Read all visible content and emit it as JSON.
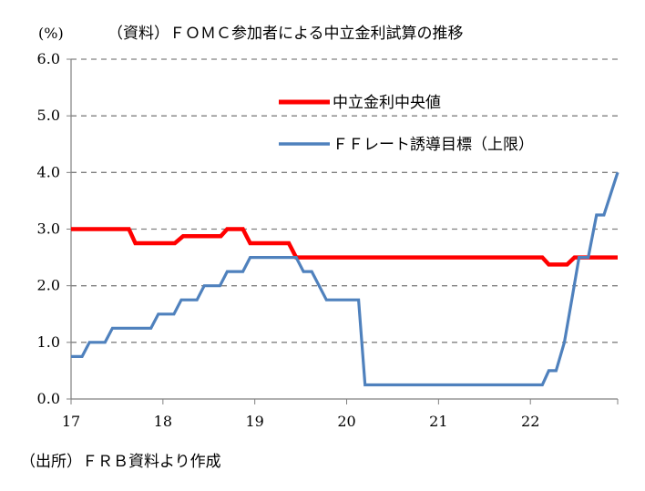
{
  "chart_data": {
    "type": "line",
    "title": "（資料）ＦＯＭＣ参加者による中立金利試算の推移",
    "ylabel": "(%)",
    "source": "（出所）ＦＲＢ資料より作成",
    "ylim": [
      0,
      6
    ],
    "xlim": [
      2017,
      2022.95
    ],
    "y_ticks": [
      "0.0",
      "1.0",
      "2.0",
      "3.0",
      "4.0",
      "5.0",
      "6.0"
    ],
    "x_ticks": [
      "17",
      "18",
      "19",
      "20",
      "21",
      "22"
    ],
    "grid": "horizontal dashed",
    "legend_position": "upper-right",
    "series": [
      {
        "name": "中立金利中央値",
        "color": "#ff0000",
        "points": [
          [
            2017.0,
            3.0
          ],
          [
            2017.63,
            3.0
          ],
          [
            2017.7,
            2.75
          ],
          [
            2018.13,
            2.75
          ],
          [
            2018.22,
            2.875
          ],
          [
            2018.63,
            2.875
          ],
          [
            2018.7,
            3.0
          ],
          [
            2018.87,
            3.0
          ],
          [
            2018.95,
            2.75
          ],
          [
            2019.37,
            2.75
          ],
          [
            2019.45,
            2.5
          ],
          [
            2022.13,
            2.5
          ],
          [
            2022.2,
            2.375
          ],
          [
            2022.4,
            2.375
          ],
          [
            2022.48,
            2.5
          ],
          [
            2022.95,
            2.5
          ]
        ]
      },
      {
        "name": "ＦＦレート誘導目標（上限）",
        "color": "#4f81bd",
        "points": [
          [
            2017.0,
            0.75
          ],
          [
            2017.12,
            0.75
          ],
          [
            2017.2,
            1.0
          ],
          [
            2017.37,
            1.0
          ],
          [
            2017.45,
            1.25
          ],
          [
            2017.87,
            1.25
          ],
          [
            2017.95,
            1.5
          ],
          [
            2018.12,
            1.5
          ],
          [
            2018.2,
            1.75
          ],
          [
            2018.37,
            1.75
          ],
          [
            2018.45,
            2.0
          ],
          [
            2018.62,
            2.0
          ],
          [
            2018.7,
            2.25
          ],
          [
            2018.87,
            2.25
          ],
          [
            2018.95,
            2.5
          ],
          [
            2019.45,
            2.5
          ],
          [
            2019.53,
            2.25
          ],
          [
            2019.62,
            2.25
          ],
          [
            2019.78,
            1.75
          ],
          [
            2020.13,
            1.75
          ],
          [
            2020.2,
            0.25
          ],
          [
            2022.13,
            0.25
          ],
          [
            2022.2,
            0.5
          ],
          [
            2022.28,
            0.5
          ],
          [
            2022.37,
            1.0
          ],
          [
            2022.45,
            1.75
          ],
          [
            2022.53,
            2.5
          ],
          [
            2022.63,
            2.5
          ],
          [
            2022.72,
            3.25
          ],
          [
            2022.8,
            3.25
          ],
          [
            2022.95,
            4.0
          ]
        ]
      }
    ]
  }
}
